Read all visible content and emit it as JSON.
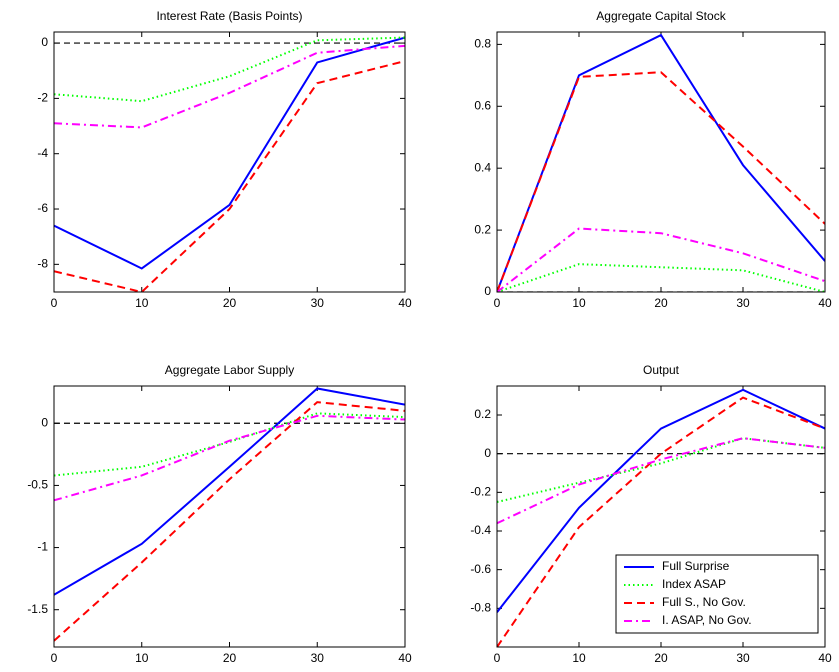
{
  "chart_data": [
    {
      "type": "line",
      "title": "Interest Rate (Basis Points)",
      "x": [
        0,
        10,
        20,
        30,
        40
      ],
      "xlim": [
        0,
        40
      ],
      "xticks": [
        0,
        10,
        20,
        30,
        40
      ],
      "ylim": [
        -9,
        0.4
      ],
      "yticks": [
        -8,
        -6,
        -4,
        -2,
        0
      ],
      "hline": 0,
      "series": [
        {
          "color": "#0000ff",
          "style": "solid",
          "values": [
            -6.6,
            -8.15,
            -5.85,
            -0.7,
            0.2
          ]
        },
        {
          "color": "#00ff00",
          "style": "dotted",
          "values": [
            -1.85,
            -2.1,
            -1.2,
            0.1,
            0.2
          ]
        },
        {
          "color": "#ff0000",
          "style": "dashed",
          "values": [
            -8.25,
            -9.0,
            -6.0,
            -1.45,
            -0.65
          ]
        },
        {
          "color": "#ff00ff",
          "style": "dashdot",
          "values": [
            -2.9,
            -3.05,
            -1.8,
            -0.35,
            -0.1
          ]
        }
      ]
    },
    {
      "type": "line",
      "title": "Aggregate Capital Stock",
      "x": [
        0,
        10,
        20,
        30,
        40
      ],
      "xlim": [
        0,
        40
      ],
      "xticks": [
        0,
        10,
        20,
        30,
        40
      ],
      "ylim": [
        0,
        0.84
      ],
      "yticks": [
        0,
        0.2,
        0.4,
        0.6,
        0.8
      ],
      "hline": 0,
      "series": [
        {
          "color": "#0000ff",
          "style": "solid",
          "values": [
            0,
            0.7,
            0.83,
            0.41,
            0.1
          ]
        },
        {
          "color": "#00ff00",
          "style": "dotted",
          "values": [
            0,
            0.09,
            0.08,
            0.07,
            0
          ]
        },
        {
          "color": "#ff0000",
          "style": "dashed",
          "values": [
            0,
            0.695,
            0.71,
            0.47,
            0.22
          ]
        },
        {
          "color": "#ff00ff",
          "style": "dashdot",
          "values": [
            0,
            0.205,
            0.19,
            0.125,
            0.035
          ]
        }
      ]
    },
    {
      "type": "line",
      "title": "Aggregate Labor Supply",
      "x": [
        0,
        10,
        20,
        30,
        40
      ],
      "xlim": [
        0,
        40
      ],
      "xticks": [
        0,
        10,
        20,
        30,
        40
      ],
      "ylim": [
        -1.8,
        0.3
      ],
      "yticks": [
        -1.5,
        -1,
        -0.5,
        0
      ],
      "hline": 0,
      "series": [
        {
          "color": "#0000ff",
          "style": "solid",
          "values": [
            -1.38,
            -0.97,
            -0.35,
            0.28,
            0.15
          ]
        },
        {
          "color": "#00ff00",
          "style": "dotted",
          "values": [
            -0.42,
            -0.35,
            -0.15,
            0.08,
            0.05
          ]
        },
        {
          "color": "#ff0000",
          "style": "dashed",
          "values": [
            -1.75,
            -1.12,
            -0.45,
            0.17,
            0.1
          ]
        },
        {
          "color": "#ff00ff",
          "style": "dashdot",
          "values": [
            -0.62,
            -0.42,
            -0.14,
            0.06,
            0.03
          ]
        }
      ]
    },
    {
      "type": "line",
      "title": "Output",
      "x": [
        0,
        10,
        20,
        30,
        40
      ],
      "xlim": [
        0,
        40
      ],
      "xticks": [
        0,
        10,
        20,
        30,
        40
      ],
      "ylim": [
        -1,
        0.35
      ],
      "yticks": [
        -0.8,
        -0.6,
        -0.4,
        -0.2,
        0,
        0.2
      ],
      "hline": 0,
      "legend": "lower right",
      "series": [
        {
          "name": "Full Surprise",
          "color": "#0000ff",
          "style": "solid",
          "values": [
            -0.82,
            -0.28,
            0.13,
            0.33,
            0.13
          ]
        },
        {
          "name": "Index ASAP",
          "color": "#00ff00",
          "style": "dotted",
          "values": [
            -0.25,
            -0.15,
            -0.05,
            0.08,
            0.03
          ]
        },
        {
          "name": "Full S., No Gov.",
          "color": "#ff0000",
          "style": "dashed",
          "values": [
            -1.0,
            -0.38,
            0.0,
            0.29,
            0.13
          ]
        },
        {
          "name": "I. ASAP, No Gov.",
          "color": "#ff00ff",
          "style": "dashdot",
          "values": [
            -0.36,
            -0.16,
            -0.03,
            0.08,
            0.03
          ]
        }
      ]
    }
  ]
}
